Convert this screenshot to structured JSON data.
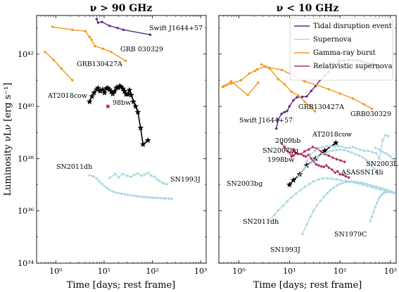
{
  "chart_data": [
    {
      "type": "line",
      "title": "ν > 90 GHz",
      "xlabel": "Time [days; rest frame]",
      "ylabel": "Luminosity νLν [erg s⁻¹]",
      "xscale": "log",
      "yscale": "log",
      "xlim": [
        0.4,
        1300
      ],
      "ylim": [
        1e+34,
        3e+43
      ],
      "x_ticks": [
        1,
        10,
        100,
        1000
      ],
      "x_tick_labels": [
        "10⁰",
        "10¹",
        "10²",
        "10³"
      ],
      "y_ticks": [
        1e+34,
        1e+36,
        1e+38,
        1e+40,
        1e+42
      ],
      "y_tick_labels": [
        "10³⁴",
        "10³⁶",
        "10³⁸",
        "10⁴⁰",
        "10⁴²"
      ],
      "series": [
        {
          "category": "tde",
          "x": [
            7,
            7.5,
            9,
            13,
            19,
            25,
            90
          ],
          "y": [
            2.2e+43,
            1.6e+43,
            1.7e+43,
            1.2e+43,
            1e+43,
            8.5e+42,
            5.5e+42
          ]
        },
        {
          "category": "grb",
          "x": [
            0.85,
            2.2,
            4.1,
            5.0,
            5.5,
            6.5,
            9.5,
            14,
            28
          ],
          "y": [
            1.1e+43,
            8.5e+42,
            7.5e+42,
            4.5e+42,
            3.5e+42,
            2e+42,
            1.6e+42,
            1.2e+42,
            5.5e+41
          ]
        },
        {
          "category": "grb",
          "x": [
            0.6,
            0.9,
            1.3,
            2.2
          ],
          "y": [
            1.2e+42,
            6e+41,
            2.8e+41,
            1e+41
          ]
        },
        {
          "category": "cow",
          "x": [
            5,
            5.6,
            6.2,
            7,
            7.5,
            8.3,
            9.3,
            10.2,
            11.2,
            12,
            13,
            14.1,
            15.1,
            16.5,
            18,
            19.5,
            21,
            22.5,
            24.5,
            26.5,
            28.5,
            31,
            33.5,
            36.5,
            40.5,
            45,
            50,
            57,
            64,
            81
          ],
          "y": [
            1.5e+40,
            2.4e+40,
            3.3e+40,
            4.4e+40,
            5e+40,
            3.8e+40,
            4.4e+40,
            3.3e+40,
            4.9e+40,
            5e+40,
            4.4e+40,
            3.6e+40,
            3e+40,
            3.8e+40,
            5.2e+40,
            5.2e+40,
            6e+40,
            5.6e+40,
            4.7e+40,
            3.8e+40,
            2.9e+40,
            2.9e+40,
            4.2e+40,
            2.7e+40,
            1.5e+40,
            1e+40,
            6e+39,
            1.5e+39,
            3.5e+38,
            5e+38
          ]
        },
        {
          "category": "sn",
          "x": [
            5.0,
            6.0,
            7.0,
            8.0,
            9.0,
            10.0,
            11.5,
            13.0,
            15.0,
            17.0,
            20.0,
            23.0,
            27.0,
            31.0,
            36.0,
            42.0,
            48.0,
            55.0,
            63.0,
            70.0,
            80.0,
            90.0,
            100.0,
            115.0,
            130.0,
            150.0,
            170.0,
            190.0,
            220.0,
            250.0
          ],
          "y": [
            2.3e+37,
            2.1e+37,
            1.75e+37,
            1.35e+37,
            1.08e+37,
            9e+36,
            7.5e+36,
            6.3e+36,
            5.6e+36,
            5.1e+36,
            4.8e+36,
            4.55e+36,
            4.3e+36,
            4.1e+36,
            3.95e+36,
            3.8e+36,
            3.65e+36,
            3.55e+36,
            3.45e+36,
            3.35e+36,
            3.3e+36,
            3.25e+36,
            3.2e+36,
            3.15e+36,
            3.1e+36,
            3.05e+36,
            3e+36,
            3e+36,
            2.95e+36,
            2.9e+36
          ]
        },
        {
          "category": "sn",
          "x": [
            13,
            17,
            20,
            24,
            30,
            36,
            42,
            50,
            60,
            70,
            82,
            95,
            110,
            125,
            140,
            160,
            180,
            200
          ],
          "y": [
            1.8e+37,
            2.6e+37,
            1.9e+37,
            2.6e+37,
            2.2e+37,
            2e+37,
            2.4e+37,
            2.7e+37,
            2.2e+37,
            2.5e+37,
            2.9e+37,
            2.2e+37,
            2e+37,
            1.6e+37,
            1.4e+37,
            1.2e+37,
            1.1e+37,
            1.05e+37
          ]
        },
        {
          "category": "sn98bw",
          "x": [
            12
          ],
          "y": [
            1e+40
          ]
        }
      ],
      "annotations": [
        {
          "text": "Swift J1644+57"
        },
        {
          "text": "GRB 030329"
        },
        {
          "text": "GRB130427A"
        },
        {
          "text": "AT2018cow"
        },
        {
          "text": "98bw"
        },
        {
          "text": "SN2011dh"
        },
        {
          "text": "SN1993J"
        }
      ]
    },
    {
      "type": "line",
      "title": "ν < 10 GHz",
      "xlabel": "Time [days; rest frame]",
      "xscale": "log",
      "yscale": "log",
      "xlim": [
        0.4,
        1300
      ],
      "ylim": [
        1e+34,
        3e+43
      ],
      "x_ticks": [
        1,
        10,
        100,
        1000
      ],
      "x_tick_labels": [
        "10⁰",
        "10¹",
        "10²",
        "10³"
      ],
      "legend": {
        "position": "top-right",
        "entries": [
          {
            "label": "Tidal disruption event",
            "category": "tde"
          },
          {
            "label": "Supernova",
            "category": "sn"
          },
          {
            "label": "Gamma-ray burst",
            "category": "grb"
          },
          {
            "label": "Relativistic supernova",
            "category": "relsn"
          }
        ]
      },
      "series": [
        {
          "category": "tde",
          "x": [
            5.5,
            6,
            7,
            8,
            9,
            10,
            12,
            14,
            18,
            22,
            27,
            33,
            40,
            50,
            60,
            75,
            95,
            120,
            150,
            180,
            220,
            260,
            300,
            340,
            380,
            420,
            460,
            500,
            550,
            600
          ],
          "y": [
            1.4e+39,
            3.1e+39,
            5.2e+39,
            6e+39,
            6.6e+39,
            1e+40,
            1.7e+40,
            2.2e+40,
            2.3e+40,
            2.4e+40,
            3.9e+40,
            6e+40,
            9.9e+40,
            1.5e+41,
            2.1e+41,
            3.2e+41,
            5.5e+41,
            5.8e+41,
            6e+41,
            5.9e+41,
            5.8e+41,
            5.5e+41,
            4.8e+41,
            4.5e+41,
            4.3e+41,
            4.1e+41,
            4.5e+41,
            3.6e+41,
            2.8e+41,
            2.3e+41
          ]
        },
        {
          "category": "grb",
          "x": [
            0.48,
            0.7,
            1.1,
            1.6,
            2.1,
            2.3,
            3.2,
            4.1,
            6,
            8,
            11,
            15,
            20,
            26,
            32
          ],
          "y": [
            5.5e+40,
            7.5e+40,
            1e+41,
            1.8e+41,
            2.3e+41,
            2.6e+41,
            3.3e+41,
            2.8e+41,
            1.1e+41,
            7e+40,
            3.6e+40,
            2.6e+40,
            1.5e+40,
            1e+40,
            6.5e+39
          ]
        },
        {
          "category": "grb",
          "x": [
            0.5,
            0.7,
            1.5,
            2.4
          ],
          "y": [
            6e+40,
            9e+40,
            2.7e+40,
            8e+40
          ]
        },
        {
          "category": "grb",
          "x": [
            2.8,
            4.0,
            7.0,
            12.0,
            20.0,
            35.0,
            60.0,
            100.0,
            180.0,
            300.0,
            430.0
          ],
          "y": [
            4e+41,
            3e+41,
            2.5e+41,
            1.5e+41,
            9e+40,
            6.5e+40,
            4.5e+40,
            3.1e+40,
            2e+40,
            1.2e+40,
            8e+39
          ]
        },
        {
          "category": "relsn",
          "x": [
            7,
            8,
            9,
            10,
            11,
            12,
            13,
            15,
            17,
            19,
            21,
            24,
            27,
            30,
            34,
            38,
            43,
            48,
            54,
            60,
            70,
            80,
            90,
            100,
            115,
            130,
            150
          ],
          "y": [
            3.8e+38,
            2.8e+38,
            2e+38,
            1.7e+38,
            1.2e+38,
            2.3e+38,
            1.7e+38,
            1.5e+38,
            1.5e+38,
            1.3e+38,
            1.2e+38,
            1.4e+38,
            1e+38,
            8e+37,
            6e+37,
            5.5e+37,
            5e+37,
            4.8e+37,
            5.5e+37,
            4.5e+37,
            3.8e+37,
            2.9e+37,
            3.3e+37,
            2.5e+37,
            2.4e+37,
            2.1e+37,
            1.9e+37
          ]
        },
        {
          "category": "relsn",
          "x": [
            12,
            14,
            17,
            20,
            24,
            29,
            35,
            42,
            50,
            60,
            72,
            86,
            103,
            124
          ],
          "y": [
            1.3e+38,
            1.6e+38,
            1.5e+38,
            1.9e+38,
            2.2e+38,
            2.8e+38,
            2.4e+38,
            1.9e+38,
            1.5e+38,
            1.3e+38,
            1.1e+38,
            9.5e+37,
            8.5e+37,
            7.5e+37
          ]
        },
        {
          "category": "cow",
          "x": [
            10,
            12,
            16,
            22,
            33,
            50,
            83
          ],
          "y": [
            1e+37,
            1.5e+37,
            2.5e+37,
            5.5e+37,
            1e+38,
            2e+38,
            4e+38
          ]
        },
        {
          "category": "sn",
          "x": [
            22,
            26,
            32,
            38,
            45,
            55,
            66,
            80,
            95,
            110,
            130,
            155,
            180,
            210,
            250,
            300,
            360,
            430,
            520,
            600,
            700,
            800,
            900
          ],
          "y": [
            8e+37,
            1.4e+38,
            2e+38,
            2.5e+38,
            2.8e+38,
            3e+38,
            3e+38,
            3e+38,
            3e+38,
            2.8e+38,
            2.6e+38,
            2.6e+38,
            2.8e+38,
            2.5e+38,
            2.2e+38,
            2e+38,
            2e+38,
            1.8e+38,
            1.6e+38,
            1e+38,
            5e+38,
            8e+38,
            7.2e+38
          ]
        },
        {
          "category": "sn",
          "x": [
            15,
            20,
            27,
            35,
            45,
            58,
            70,
            85,
            100,
            120,
            145,
            170,
            200,
            240,
            285,
            330,
            380,
            430,
            480,
            530
          ],
          "y": [
            2e+37,
            4.5e+37,
            7e+37,
            1.1e+38,
            1.5e+38,
            1.8e+38,
            2e+38,
            2.1e+38,
            2.2e+38,
            2.1e+38,
            1.9e+38,
            1.7e+38,
            1.5e+38,
            1.3e+38,
            1.1e+38,
            9e+37,
            7e+37,
            5.5e+37,
            4.2e+37,
            3.2e+37
          ]
        },
        {
          "category": "sn",
          "x": [
            4.0,
            5.0,
            6.0,
            7.5,
            9.0,
            11.0,
            13.5,
            16.5,
            20.0,
            25.0,
            30.0,
            38.0,
            46.0,
            57.0,
            70.0,
            86.0,
            105.0,
            130.0,
            160.0,
            195.0,
            240.0,
            290.0,
            355.0,
            430.0,
            520.0,
            640.0,
            780.0,
            950.0,
            1150.0
          ],
          "y": [
            4.3e+35,
            7e+35,
            1.05e+36,
            1.6e+36,
            2.3e+36,
            3.3e+36,
            4.6e+36,
            6.2e+36,
            8.2e+36,
            1.08e+37,
            1.35e+37,
            1.6e+37,
            1.75e+37,
            1.75e+37,
            1.7e+37,
            1.6e+37,
            1.5e+37,
            1.4e+37,
            1.3e+37,
            1.2e+37,
            1.1e+37,
            1e+37,
            9e+36,
            8e+36,
            7.2e+36,
            6.5e+36,
            5.8e+36,
            5.2e+36,
            4.8e+36
          ]
        },
        {
          "category": "sn",
          "x": [
            18,
            22,
            26,
            30,
            35,
            41,
            48,
            56,
            65,
            75,
            87,
            100,
            115,
            132,
            150,
            170,
            195,
            225,
            260,
            300,
            345,
            400,
            460,
            530,
            610,
            700,
            800,
            920,
            1050,
            1200
          ],
          "y": [
            1.3e+35,
            3e+35,
            6e+35,
            1e+36,
            1.6e+36,
            2.4e+36,
            3.4e+36,
            4.7e+36,
            6.2e+36,
            7.8e+36,
            9.4e+36,
            1.07e+37,
            1.18e+37,
            1.25e+37,
            1.3e+37,
            1.32e+37,
            1.3e+37,
            1.25e+37,
            1.2e+37,
            1.12e+37,
            1.05e+37,
            9.8e+36,
            9e+36,
            8.4e+36,
            7.8e+36,
            7.2e+36,
            6.6e+36,
            6e+36,
            5.5e+36,
            5e+36
          ]
        },
        {
          "category": "sn",
          "x": [
            400,
            430,
            460,
            500,
            540,
            580,
            620,
            670,
            720,
            780,
            840,
            900,
            970,
            1050
          ],
          "y": [
            4e+35,
            6e+35,
            9e+35,
            1.4e+36,
            2e+36,
            2.7e+36,
            3.4e+36,
            4.1e+36,
            4.7e+36,
            5e+36,
            5.3e+36,
            5.5e+36,
            5.5e+36,
            5.4e+36
          ]
        },
        {
          "category": "sn",
          "x": [
            500,
            600,
            700,
            800,
            900,
            1000,
            1100,
            1200
          ],
          "y": [
            2.6e+38,
            2.2e+38,
            1.8e+38,
            1.6e+38,
            1.4e+38,
            1.2e+38,
            1e+38,
            8e+37
          ]
        }
      ],
      "annotations": [
        {
          "text": "GRB130427A"
        },
        {
          "text": "GRB030329"
        },
        {
          "text": "Swift J1644+57"
        },
        {
          "text": "2009bb"
        },
        {
          "text": "AT2018cow"
        },
        {
          "text": "SN2007bg"
        },
        {
          "text": "1998bw"
        },
        {
          "text": "SN2003L"
        },
        {
          "text": "ASASSN14li"
        },
        {
          "text": "SN2003bg"
        },
        {
          "text": "SN2011dh"
        },
        {
          "text": "SN1993J"
        },
        {
          "text": "SN1979C"
        }
      ]
    }
  ],
  "colors": {
    "tde": "#5b2a86",
    "sn": "#add8e6",
    "grb": "#f5961e",
    "relsn": "#b03060",
    "cow": "#000000",
    "sn98bw": "#d62a4a"
  }
}
